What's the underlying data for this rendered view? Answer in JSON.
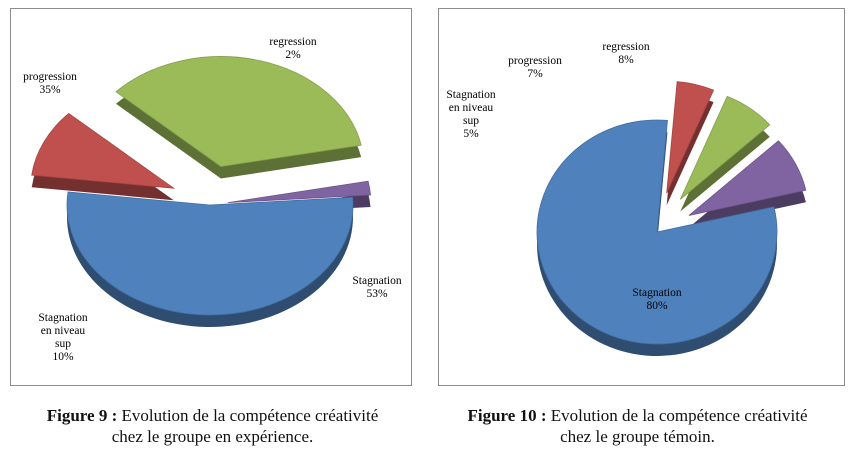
{
  "chart_data": [
    {
      "type": "pie",
      "slices": [
        {
          "label": "Stagnation",
          "value": 53,
          "color": "#4f81bd"
        },
        {
          "label": "Stagnation en niveau sup",
          "value": 10,
          "color": "#c0504d"
        },
        {
          "label": "progression",
          "value": 35,
          "color": "#9bbb59"
        },
        {
          "label": "regression",
          "value": 2,
          "color": "#8064a2"
        }
      ],
      "value_suffix": "%",
      "caption_number": "Figure 9 :",
      "caption_text_line1": "Evolution de la compétence créativité",
      "caption_text_line2": "chez le groupe en expérience."
    },
    {
      "type": "pie",
      "slices": [
        {
          "label": "Stagnation",
          "value": 80,
          "color": "#4f81bd"
        },
        {
          "label": "Stagnation en niveau sup",
          "value": 5,
          "color": "#c0504d"
        },
        {
          "label": "progression",
          "value": 7,
          "color": "#9bbb59"
        },
        {
          "label": "regression",
          "value": 8,
          "color": "#8064a2"
        }
      ],
      "value_suffix": "%",
      "caption_number": "Figure 10 :",
      "caption_text_line1": "Evolution de la compétence créativité",
      "caption_text_line2": "chez le groupe témoin."
    }
  ]
}
